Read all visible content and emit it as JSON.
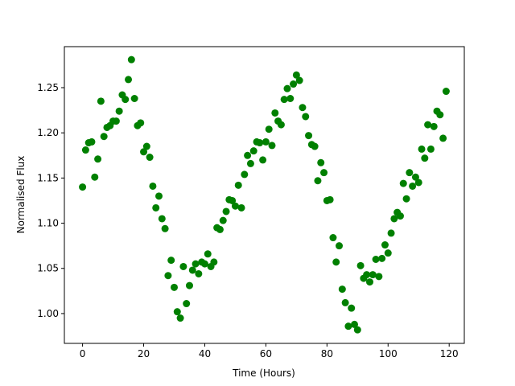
{
  "chart_data": {
    "type": "scatter",
    "xlabel": "Time (Hours)",
    "ylabel": "Normalised Flux",
    "color": "#008000",
    "x": [
      0,
      1,
      2,
      3,
      4,
      5,
      6,
      7,
      8,
      9,
      10,
      11,
      12,
      13,
      14,
      15,
      16,
      17,
      18,
      19,
      20,
      21,
      22,
      23,
      24,
      25,
      26,
      27,
      28,
      29,
      30,
      31,
      32,
      33,
      34,
      35,
      36,
      37,
      38,
      39,
      40,
      41,
      42,
      43,
      44,
      45,
      46,
      47,
      48,
      49,
      50,
      51,
      52,
      53,
      54,
      55,
      56,
      57,
      58,
      59,
      60,
      61,
      62,
      63,
      64,
      65,
      66,
      67,
      68,
      69,
      70,
      71,
      72,
      73,
      74,
      75,
      76,
      77,
      78,
      79,
      80,
      81,
      82,
      83,
      84,
      85,
      86,
      87,
      88,
      89,
      90,
      91,
      92,
      93,
      94,
      95,
      96,
      97,
      98,
      99,
      100,
      101,
      102,
      103,
      104,
      105,
      106,
      107,
      108,
      109,
      110,
      111,
      112,
      113,
      114,
      115,
      116,
      117,
      118,
      119
    ],
    "values": [
      1.14,
      1.181,
      1.189,
      1.19,
      1.151,
      1.171,
      1.235,
      1.196,
      1.206,
      1.208,
      1.213,
      1.213,
      1.224,
      1.242,
      1.237,
      1.259,
      1.281,
      1.238,
      1.208,
      1.211,
      1.179,
      1.185,
      1.173,
      1.141,
      1.117,
      1.13,
      1.105,
      1.094,
      1.042,
      1.059,
      1.029,
      1.002,
      0.995,
      1.052,
      1.011,
      1.031,
      1.048,
      1.055,
      1.044,
      1.057,
      1.055,
      1.066,
      1.052,
      1.057,
      1.095,
      1.093,
      1.103,
      1.113,
      1.126,
      1.125,
      1.119,
      1.142,
      1.117,
      1.154,
      1.175,
      1.166,
      1.18,
      1.19,
      1.189,
      1.17,
      1.19,
      1.204,
      1.186,
      1.222,
      1.213,
      1.209,
      1.237,
      1.249,
      1.238,
      1.254,
      1.264,
      1.258,
      1.228,
      1.218,
      1.197,
      1.187,
      1.185,
      1.147,
      1.167,
      1.156,
      1.125,
      1.126,
      1.084,
      1.057,
      1.075,
      1.027,
      1.012,
      0.986,
      1.006,
      0.988,
      0.982,
      1.053,
      1.039,
      1.043,
      1.035,
      1.043,
      1.06,
      1.041,
      1.061,
      1.076,
      1.067,
      1.089,
      1.105,
      1.112,
      1.108,
      1.144,
      1.127,
      1.156,
      1.141,
      1.151,
      1.145,
      1.182,
      1.172,
      1.209,
      1.182,
      1.207,
      1.224,
      1.22,
      1.194,
      1.246
    ],
    "xlim": [
      -5.95,
      124.95
    ],
    "xticks": [
      0,
      20,
      40,
      60,
      80,
      100,
      120
    ],
    "ylim": [
      0.967,
      1.2954
    ],
    "yticks": [
      {
        "value": 1,
        "label": "1.00"
      },
      1.05,
      {
        "value": 1.1,
        "label": "1.10"
      },
      1.15,
      {
        "value": 1.2,
        "label": "1.20"
      },
      1.25
    ],
    "grid": false
  }
}
